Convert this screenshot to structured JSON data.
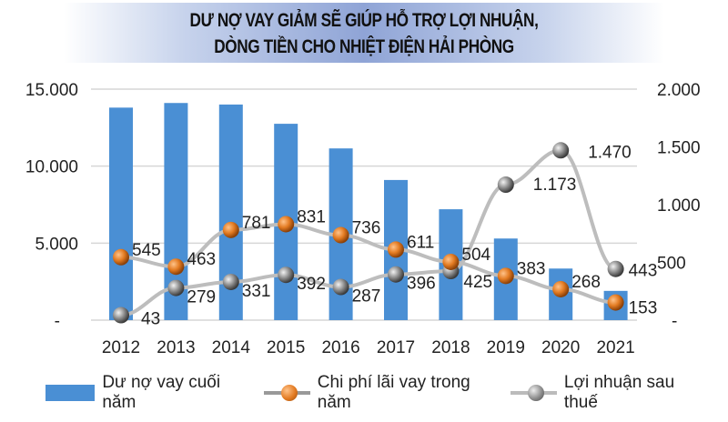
{
  "chart_data": {
    "type": "bar+line",
    "title": "DƯ NỢ VAY GIẢM SẼ GIÚP HỖ TRỢ LỢI NHUẬN, DÒNG TIỀN CHO NHIỆT ĐIỆN HẢI PHÒNG",
    "title_lines": [
      "DƯ NỢ VAY GIẢM SẼ GIÚP HỖ TRỢ LỢI NHUẬN,",
      "DÒNG TIỀN CHO NHIỆT ĐIỆN HẢI PHÒNG"
    ],
    "categories": [
      "2012",
      "2013",
      "2014",
      "2015",
      "2016",
      "2017",
      "2018",
      "2019",
      "2020",
      "2021"
    ],
    "left_axis": {
      "ylim": [
        0,
        15000
      ],
      "ticks": [
        0,
        5000,
        10000,
        15000
      ],
      "tick_labels": [
        "-",
        "5.000",
        "10.000",
        "15.000"
      ]
    },
    "right_axis": {
      "ylim": [
        0,
        2000
      ],
      "ticks": [
        0,
        500,
        1000,
        1500,
        2000
      ],
      "tick_labels": [
        "-",
        "500",
        "1.000",
        "1.500",
        "2.000"
      ]
    },
    "grid": true,
    "legend_position": "bottom",
    "series": [
      {
        "name": "Dư nợ vay cuối năm",
        "type": "bar",
        "axis": "left",
        "color": "#4a8fd4",
        "values": [
          13800,
          14100,
          14000,
          12750,
          11150,
          9100,
          7200,
          5300,
          3350,
          1900
        ]
      },
      {
        "name": "Chi phí lãi vay trong năm",
        "type": "line",
        "axis": "right",
        "color": "#e37b22",
        "values": [
          545,
          463,
          781,
          831,
          736,
          611,
          504,
          383,
          268,
          153
        ],
        "labels": [
          "545",
          "463",
          "781",
          "831",
          "736",
          "611",
          "504",
          "383",
          "268",
          "153"
        ]
      },
      {
        "name": "Lợi nhuận sau thuế",
        "type": "line",
        "axis": "right",
        "color": "#8c8c8c",
        "values": [
          43,
          279,
          331,
          392,
          287,
          396,
          425,
          1173,
          1470,
          443
        ],
        "labels": [
          "43",
          "279",
          "331",
          "392",
          "287",
          "396",
          "425",
          "1.173",
          "1.470",
          "443"
        ]
      }
    ]
  }
}
